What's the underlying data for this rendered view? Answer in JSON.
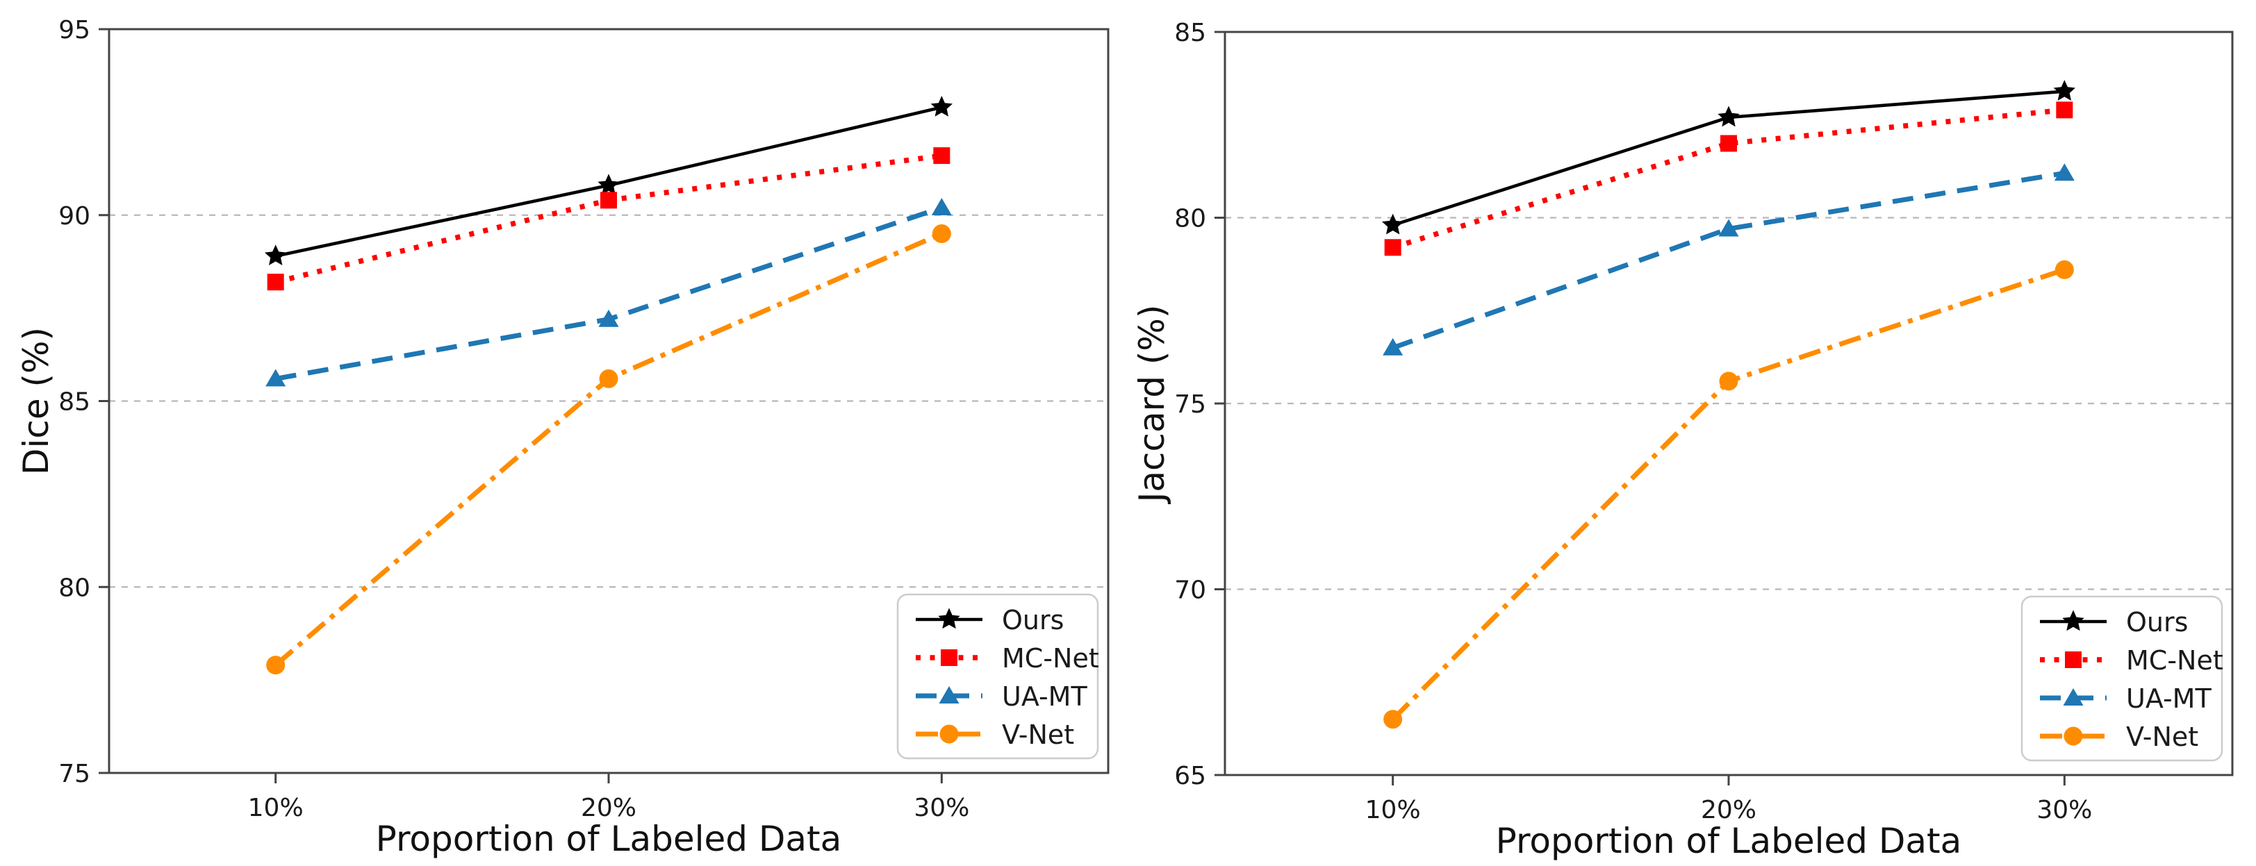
{
  "figure": {
    "background": "#ffffff",
    "spine_color": "#444444",
    "grid_color": "#b8b8b8",
    "tick_color": "#444444"
  },
  "chart_data": [
    {
      "type": "line",
      "title": "",
      "xlabel": "Proportion of Labeled Data",
      "ylabel": "Dice (%)",
      "categories": [
        "10%",
        "20%",
        "30%"
      ],
      "ylim": [
        75,
        95
      ],
      "yticks": [
        75,
        80,
        85,
        90,
        95
      ],
      "grid": {
        "horizontal": [
          80,
          85,
          90
        ],
        "style": "dashed"
      },
      "legend": {
        "position": "lower-right"
      },
      "series": [
        {
          "name": "Ours",
          "color": "#000000",
          "linestyle": "solid",
          "marker": "star",
          "values": [
            88.9,
            90.8,
            92.9
          ]
        },
        {
          "name": "MC-Net",
          "color": "#ff0000",
          "linestyle": "dotted",
          "marker": "square",
          "values": [
            88.2,
            90.4,
            91.6
          ]
        },
        {
          "name": "UA-MT",
          "color": "#1f77b4",
          "linestyle": "dashed",
          "marker": "triangle-up",
          "values": [
            85.6,
            87.2,
            90.2
          ]
        },
        {
          "name": "V-Net",
          "color": "#ff8c00",
          "linestyle": "dashdot",
          "marker": "circle",
          "values": [
            77.9,
            85.6,
            89.5
          ]
        }
      ]
    },
    {
      "type": "line",
      "title": "",
      "xlabel": "Proportion of Labeled Data",
      "ylabel": "Jaccard (%)",
      "categories": [
        "10%",
        "20%",
        "30%"
      ],
      "ylim": [
        65,
        85
      ],
      "yticks": [
        65,
        70,
        75,
        80,
        85
      ],
      "grid": {
        "horizontal": [
          70,
          75,
          80
        ],
        "style": "dashed"
      },
      "legend": {
        "position": "lower-right"
      },
      "series": [
        {
          "name": "Ours",
          "color": "#000000",
          "linestyle": "solid",
          "marker": "star",
          "values": [
            79.8,
            82.7,
            83.4
          ]
        },
        {
          "name": "MC-Net",
          "color": "#ff0000",
          "linestyle": "dotted",
          "marker": "square",
          "values": [
            79.2,
            82.0,
            82.9
          ]
        },
        {
          "name": "UA-MT",
          "color": "#1f77b4",
          "linestyle": "dashed",
          "marker": "triangle-up",
          "values": [
            76.5,
            79.7,
            81.2
          ]
        },
        {
          "name": "V-Net",
          "color": "#ff8c00",
          "linestyle": "dashdot",
          "marker": "circle",
          "values": [
            66.5,
            75.6,
            78.6
          ]
        }
      ]
    }
  ]
}
